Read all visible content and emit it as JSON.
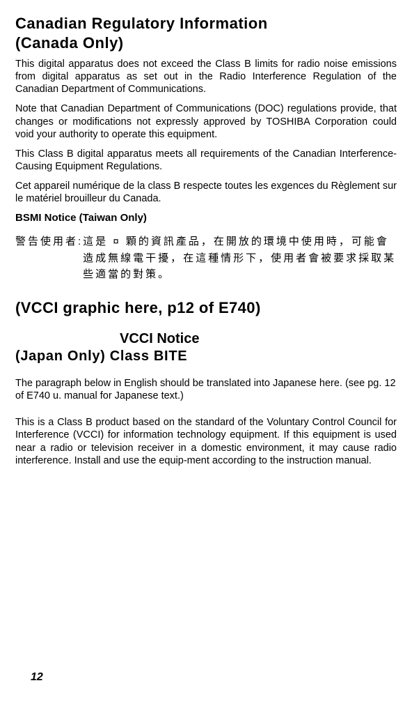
{
  "header": {
    "title_line1": "Canadian Regulatory Information",
    "title_line2": " (Canada Only)"
  },
  "paragraphs": {
    "p1": "This digital apparatus does not exceed the Class B limits for radio noise emissions from digital apparatus as set out in the Radio Interference Regulation of the Canadian Department of Communications.",
    "p2": "Note that Canadian Department of Communications (DOC) regulations provide, that changes or modifications not expressly approved by TOSHIBA Corporation could void your authority to operate this equipment.",
    "p3": "This Class B digital apparatus meets all requirements of the Canadian Interference-Causing Equipment Regulations.",
    "p4": "Cet appareil numérique de la class B respecte toutes les exgences du Règlement sur le matériel brouilleur du Canada."
  },
  "bsmi": {
    "title": "BSMI Notice (Taiwan Only)",
    "label": "警告使用者: ",
    "text": "這是 ¤ 顆的資訊產品，在開放的環境中使用時，可能會造成無線電干擾，在這種情形下，使用者會被要求採取某些適當的對策。"
  },
  "vcci": {
    "graphic": "(VCCI graphic here, p12 of E740)",
    "notice": "VCCI Notice",
    "sub": " (Japan Only) Class BITE",
    "p1": "The paragraph below in English should be translated into Japanese here. (see pg. 12 of E740 u. manual for  Japanese text.)",
    "p2": "This is a Class B product based on the standard of the Voluntary Control Council for Interference (VCCI) for information technology equipment. If this equipment is used near a radio or television receiver in a domestic environment, it may cause radio interference. Install and use the equip-ment according to the instruction manual."
  },
  "page": {
    "number": "12"
  }
}
